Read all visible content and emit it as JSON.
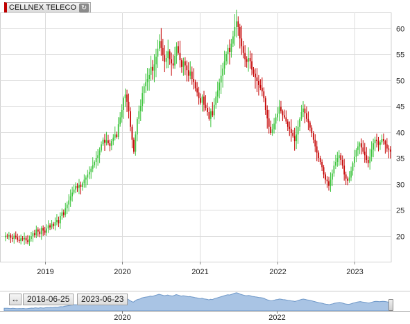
{
  "header": {
    "title": "CELLNEX TELECO",
    "refresh_icon": "refresh-icon",
    "accent_color": "#c00000"
  },
  "navigator": {
    "start_date": "2018-06-25",
    "end_date": "2023-06-23",
    "expand_icon": "horizontal-expand-icon",
    "x_tick_labels": [
      "2020",
      "2022"
    ]
  },
  "chart_data": {
    "type": "candlestick",
    "title": "CELLNEX TELECO",
    "xlabel": "",
    "ylabel": "",
    "ylim": [
      15,
      63
    ],
    "y_ticks": [
      20,
      25,
      30,
      35,
      40,
      45,
      50,
      55,
      60
    ],
    "x_ticks": [
      "2019",
      "2020",
      "2021",
      "2022",
      "2023"
    ],
    "x_range": [
      "2018-06-25",
      "2023-06-23"
    ],
    "y_axis_position": "right",
    "grid": true,
    "up_color": "#3ec43e",
    "down_color": "#c40000",
    "weekly_close": [
      20.0,
      19.9,
      20.1,
      19.6,
      19.4,
      20.0,
      19.7,
      19.2,
      19.0,
      19.5,
      19.3,
      19.6,
      19.1,
      18.8,
      19.4,
      19.9,
      20.5,
      20.1,
      21.2,
      20.8,
      20.3,
      21.5,
      21.0,
      20.6,
      21.4,
      22.0,
      21.6,
      22.3,
      21.9,
      22.6,
      23.0,
      22.4,
      23.8,
      24.5,
      24.0,
      25.3,
      26.0,
      26.8,
      27.6,
      28.3,
      28.9,
      29.6,
      29.2,
      29.8,
      29.4,
      30.1,
      30.8,
      31.2,
      31.8,
      32.3,
      32.9,
      33.6,
      34.2,
      35.0,
      35.5,
      36.4,
      37.6,
      38.5,
      37.9,
      38.4,
      37.8,
      37.3,
      38.2,
      38.9,
      39.5,
      39.0,
      41.5,
      42.8,
      44.2,
      46.5,
      47.2,
      45.8,
      44.0,
      41.0,
      38.5,
      36.2,
      39.5,
      42.5,
      44.0,
      45.0,
      47.5,
      48.8,
      49.6,
      50.2,
      51.0,
      52.5,
      51.8,
      53.0,
      54.5,
      56.0,
      57.5,
      56.2,
      54.8,
      53.5,
      54.2,
      55.5,
      54.0,
      53.2,
      52.8,
      54.6,
      56.5,
      55.2,
      53.8,
      52.5,
      53.6,
      52.8,
      51.9,
      50.8,
      51.6,
      50.2,
      49.6,
      48.4,
      47.6,
      46.5,
      45.6,
      46.8,
      45.2,
      44.6,
      43.8,
      42.5,
      44.0,
      43.2,
      45.2,
      46.8,
      48.0,
      49.5,
      50.8,
      52.2,
      53.6,
      55.0,
      56.2,
      55.4,
      57.0,
      58.4,
      60.2,
      61.3,
      60.2,
      58.0,
      56.5,
      55.2,
      54.0,
      53.5,
      54.2,
      53.6,
      52.0,
      51.2,
      50.5,
      49.8,
      49.0,
      48.5,
      47.8,
      46.5,
      44.2,
      42.6,
      41.0,
      39.8,
      40.5,
      41.6,
      42.8,
      43.5,
      44.8,
      44.0,
      43.2,
      42.8,
      42.0,
      41.0,
      40.6,
      39.8,
      39.2,
      38.2,
      39.5,
      41.0,
      42.5,
      43.8,
      44.5,
      43.6,
      42.5,
      41.8,
      40.8,
      39.8,
      38.5,
      37.2,
      36.0,
      35.0,
      34.2,
      33.2,
      31.8,
      30.8,
      30.5,
      29.6,
      30.8,
      32.0,
      33.5,
      34.2,
      35.0,
      35.5,
      34.6,
      33.5,
      31.8,
      31.0,
      30.6,
      31.2,
      32.5,
      34.0,
      35.2,
      36.5,
      37.2,
      37.8,
      37.0,
      36.2,
      35.5,
      34.6,
      34.0,
      35.2,
      36.6,
      37.8,
      38.5,
      38.2,
      37.5,
      38.0,
      38.6,
      38.2,
      37.6,
      36.8,
      36.6,
      36.2
    ]
  }
}
